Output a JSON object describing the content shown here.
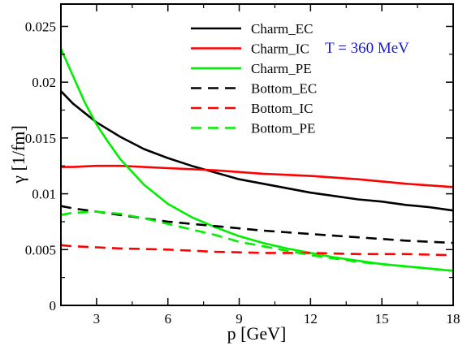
{
  "chart_data": {
    "type": "line",
    "xlabel": "p [GeV]",
    "ylabel": "γ  [1/fm]",
    "xlim": [
      1.5,
      18
    ],
    "ylim": [
      0,
      0.027
    ],
    "xticks": [
      3,
      6,
      9,
      12,
      15,
      18
    ],
    "xtick_labels": [
      "3",
      "6",
      "9",
      "12",
      "15",
      "18"
    ],
    "yticks": [
      0,
      0.005,
      0.01,
      0.015,
      0.02,
      0.025
    ],
    "ytick_labels": [
      "0",
      "0.005",
      "0.01",
      "0.015",
      "0.02",
      "0.025"
    ],
    "grid": false,
    "legend_position": "top-center",
    "annotation": {
      "text": "T = 360 MeV",
      "color": "#1a1acc"
    },
    "series": [
      {
        "name": "Charm_EC",
        "color": "#000000",
        "dash": false,
        "x": [
          1.5,
          2,
          3,
          4,
          5,
          6,
          7,
          8,
          9,
          10,
          11,
          12,
          13,
          14,
          15,
          16,
          17,
          18
        ],
        "y": [
          0.0192,
          0.0181,
          0.0164,
          0.0151,
          0.014,
          0.0132,
          0.0125,
          0.0119,
          0.0113,
          0.0109,
          0.0105,
          0.0101,
          0.0098,
          0.0095,
          0.0093,
          0.009,
          0.0088,
          0.0085
        ]
      },
      {
        "name": "Charm_IC",
        "color": "#ff0000",
        "dash": false,
        "x": [
          1.5,
          2,
          3,
          4,
          6,
          8,
          10,
          12,
          14,
          16,
          18
        ],
        "y": [
          0.0124,
          0.0124,
          0.0125,
          0.0125,
          0.0123,
          0.0121,
          0.0118,
          0.0116,
          0.0113,
          0.0109,
          0.0106
        ]
      },
      {
        "name": "Charm_PE",
        "color": "#00ee00",
        "dash": false,
        "x": [
          1.5,
          2,
          2.5,
          3,
          3.5,
          4,
          5,
          6,
          7,
          8,
          9,
          10,
          11,
          12,
          13,
          14,
          15,
          16,
          17,
          18
        ],
        "y": [
          0.023,
          0.0206,
          0.0182,
          0.0162,
          0.0146,
          0.0131,
          0.0108,
          0.0091,
          0.0079,
          0.007,
          0.0062,
          0.0056,
          0.0051,
          0.0047,
          0.0043,
          0.004,
          0.0037,
          0.0035,
          0.0033,
          0.0031
        ]
      },
      {
        "name": "Bottom_EC",
        "color": "#000000",
        "dash": true,
        "x": [
          1.5,
          2,
          3,
          4,
          6,
          8,
          10,
          12,
          14,
          16,
          18
        ],
        "y": [
          0.0089,
          0.0087,
          0.0084,
          0.0081,
          0.0075,
          0.0071,
          0.0067,
          0.0064,
          0.0061,
          0.0058,
          0.0056
        ]
      },
      {
        "name": "Bottom_IC",
        "color": "#ff0000",
        "dash": true,
        "x": [
          1.5,
          2,
          3,
          4,
          6,
          8,
          10,
          12,
          14,
          16,
          18
        ],
        "y": [
          0.0054,
          0.0053,
          0.0052,
          0.0051,
          0.005,
          0.0048,
          0.0047,
          0.0047,
          0.0046,
          0.0046,
          0.0045
        ]
      },
      {
        "name": "Bottom_PE",
        "color": "#00ee00",
        "dash": true,
        "x": [
          1.5,
          2,
          3,
          4,
          5,
          6,
          7,
          8,
          9,
          10,
          11,
          12,
          13,
          14,
          15,
          16,
          17,
          18
        ],
        "y": [
          0.0081,
          0.0083,
          0.0084,
          0.0082,
          0.0078,
          0.0073,
          0.0068,
          0.0063,
          0.0057,
          0.0053,
          0.0049,
          0.0045,
          0.0042,
          0.0039,
          0.0037,
          0.0035,
          0.0033,
          0.0031
        ]
      }
    ]
  }
}
